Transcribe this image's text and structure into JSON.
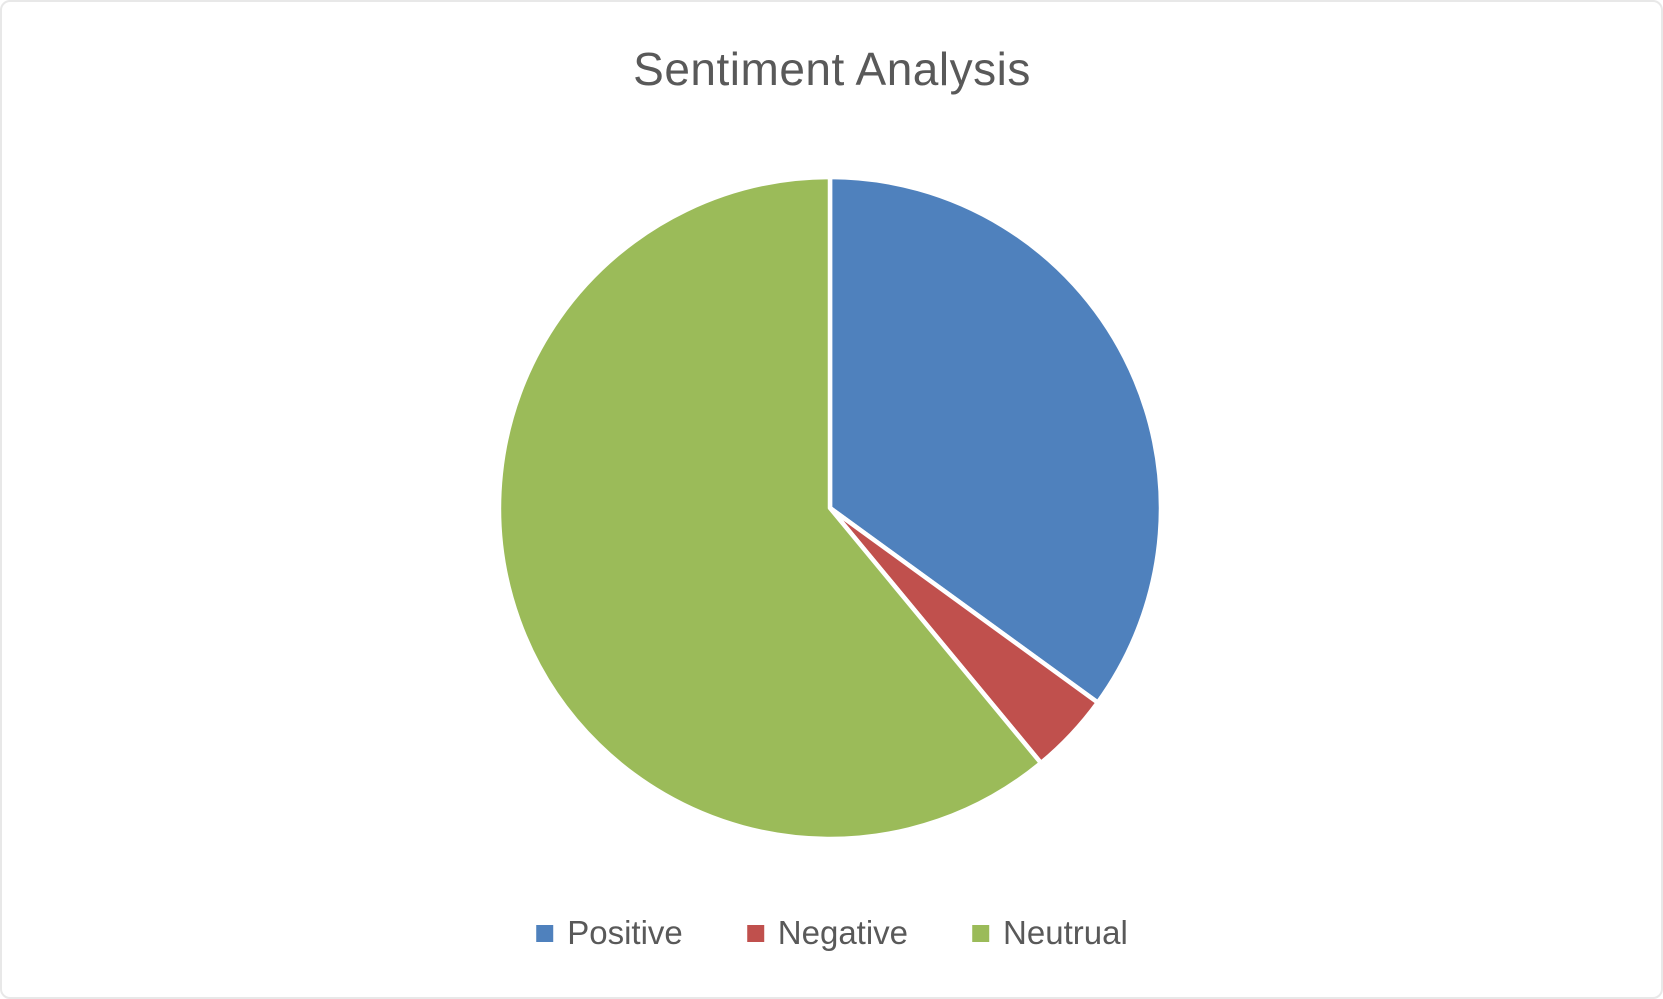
{
  "page": {
    "background_color": "#ffffff",
    "border_color": "#e8e8e8"
  },
  "chart_data": {
    "type": "pie",
    "title": "Sentiment Analysis",
    "title_color": "#595959",
    "legend_position": "bottom",
    "legend_text_color": "#595959",
    "slice_border_color": "#ffffff",
    "start_angle_deg": 0,
    "direction": "clockwise",
    "slices": [
      {
        "label": "Positive",
        "value": 35,
        "color": "#4F81BD"
      },
      {
        "label": "Negative",
        "value": 4,
        "color": "#C0504D"
      },
      {
        "label": "Neutrual",
        "value": 61,
        "color": "#9BBB59"
      }
    ]
  }
}
